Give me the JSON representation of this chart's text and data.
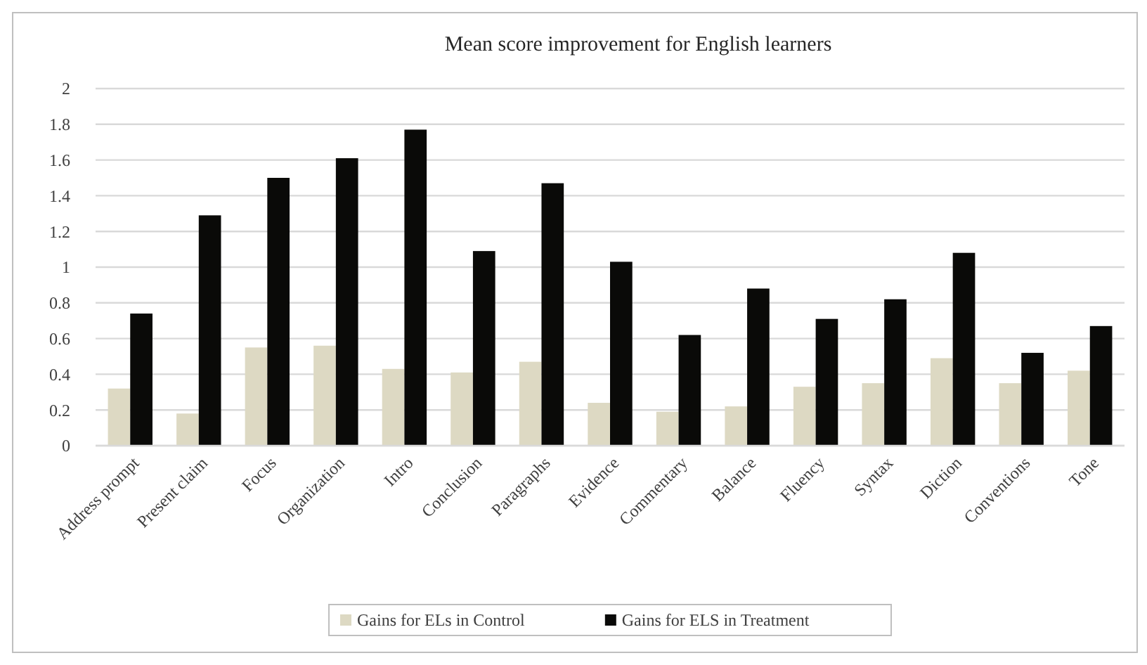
{
  "chart_data": {
    "type": "bar",
    "title": "Mean score improvement for English learners",
    "categories": [
      "Address prompt",
      "Present claim",
      "Focus",
      "Organization",
      "Intro",
      "Conclusion",
      "Paragraphs",
      "Evidence",
      "Commentary",
      "Balance",
      "Fluency",
      "Syntax",
      "Diction",
      "Conventions",
      "Tone"
    ],
    "series": [
      {
        "name": "Gains for ELs in Control",
        "color": "#ddd9c3",
        "values": [
          0.32,
          0.18,
          0.55,
          0.56,
          0.43,
          0.41,
          0.47,
          0.24,
          0.19,
          0.22,
          0.33,
          0.35,
          0.49,
          0.35,
          0.42
        ]
      },
      {
        "name": "Gains for ELS in Treatment",
        "color": "#0a0a08",
        "values": [
          0.74,
          1.29,
          1.5,
          1.61,
          1.77,
          1.09,
          1.47,
          1.03,
          0.62,
          0.88,
          0.71,
          0.82,
          1.08,
          0.52,
          0.67
        ]
      }
    ],
    "ylim": [
      0,
      2
    ],
    "yticks": [
      0,
      0.2,
      0.4,
      0.6,
      0.8,
      1,
      1.2,
      1.4,
      1.6,
      1.8,
      2
    ],
    "grid": "y",
    "legend": "bottom"
  }
}
